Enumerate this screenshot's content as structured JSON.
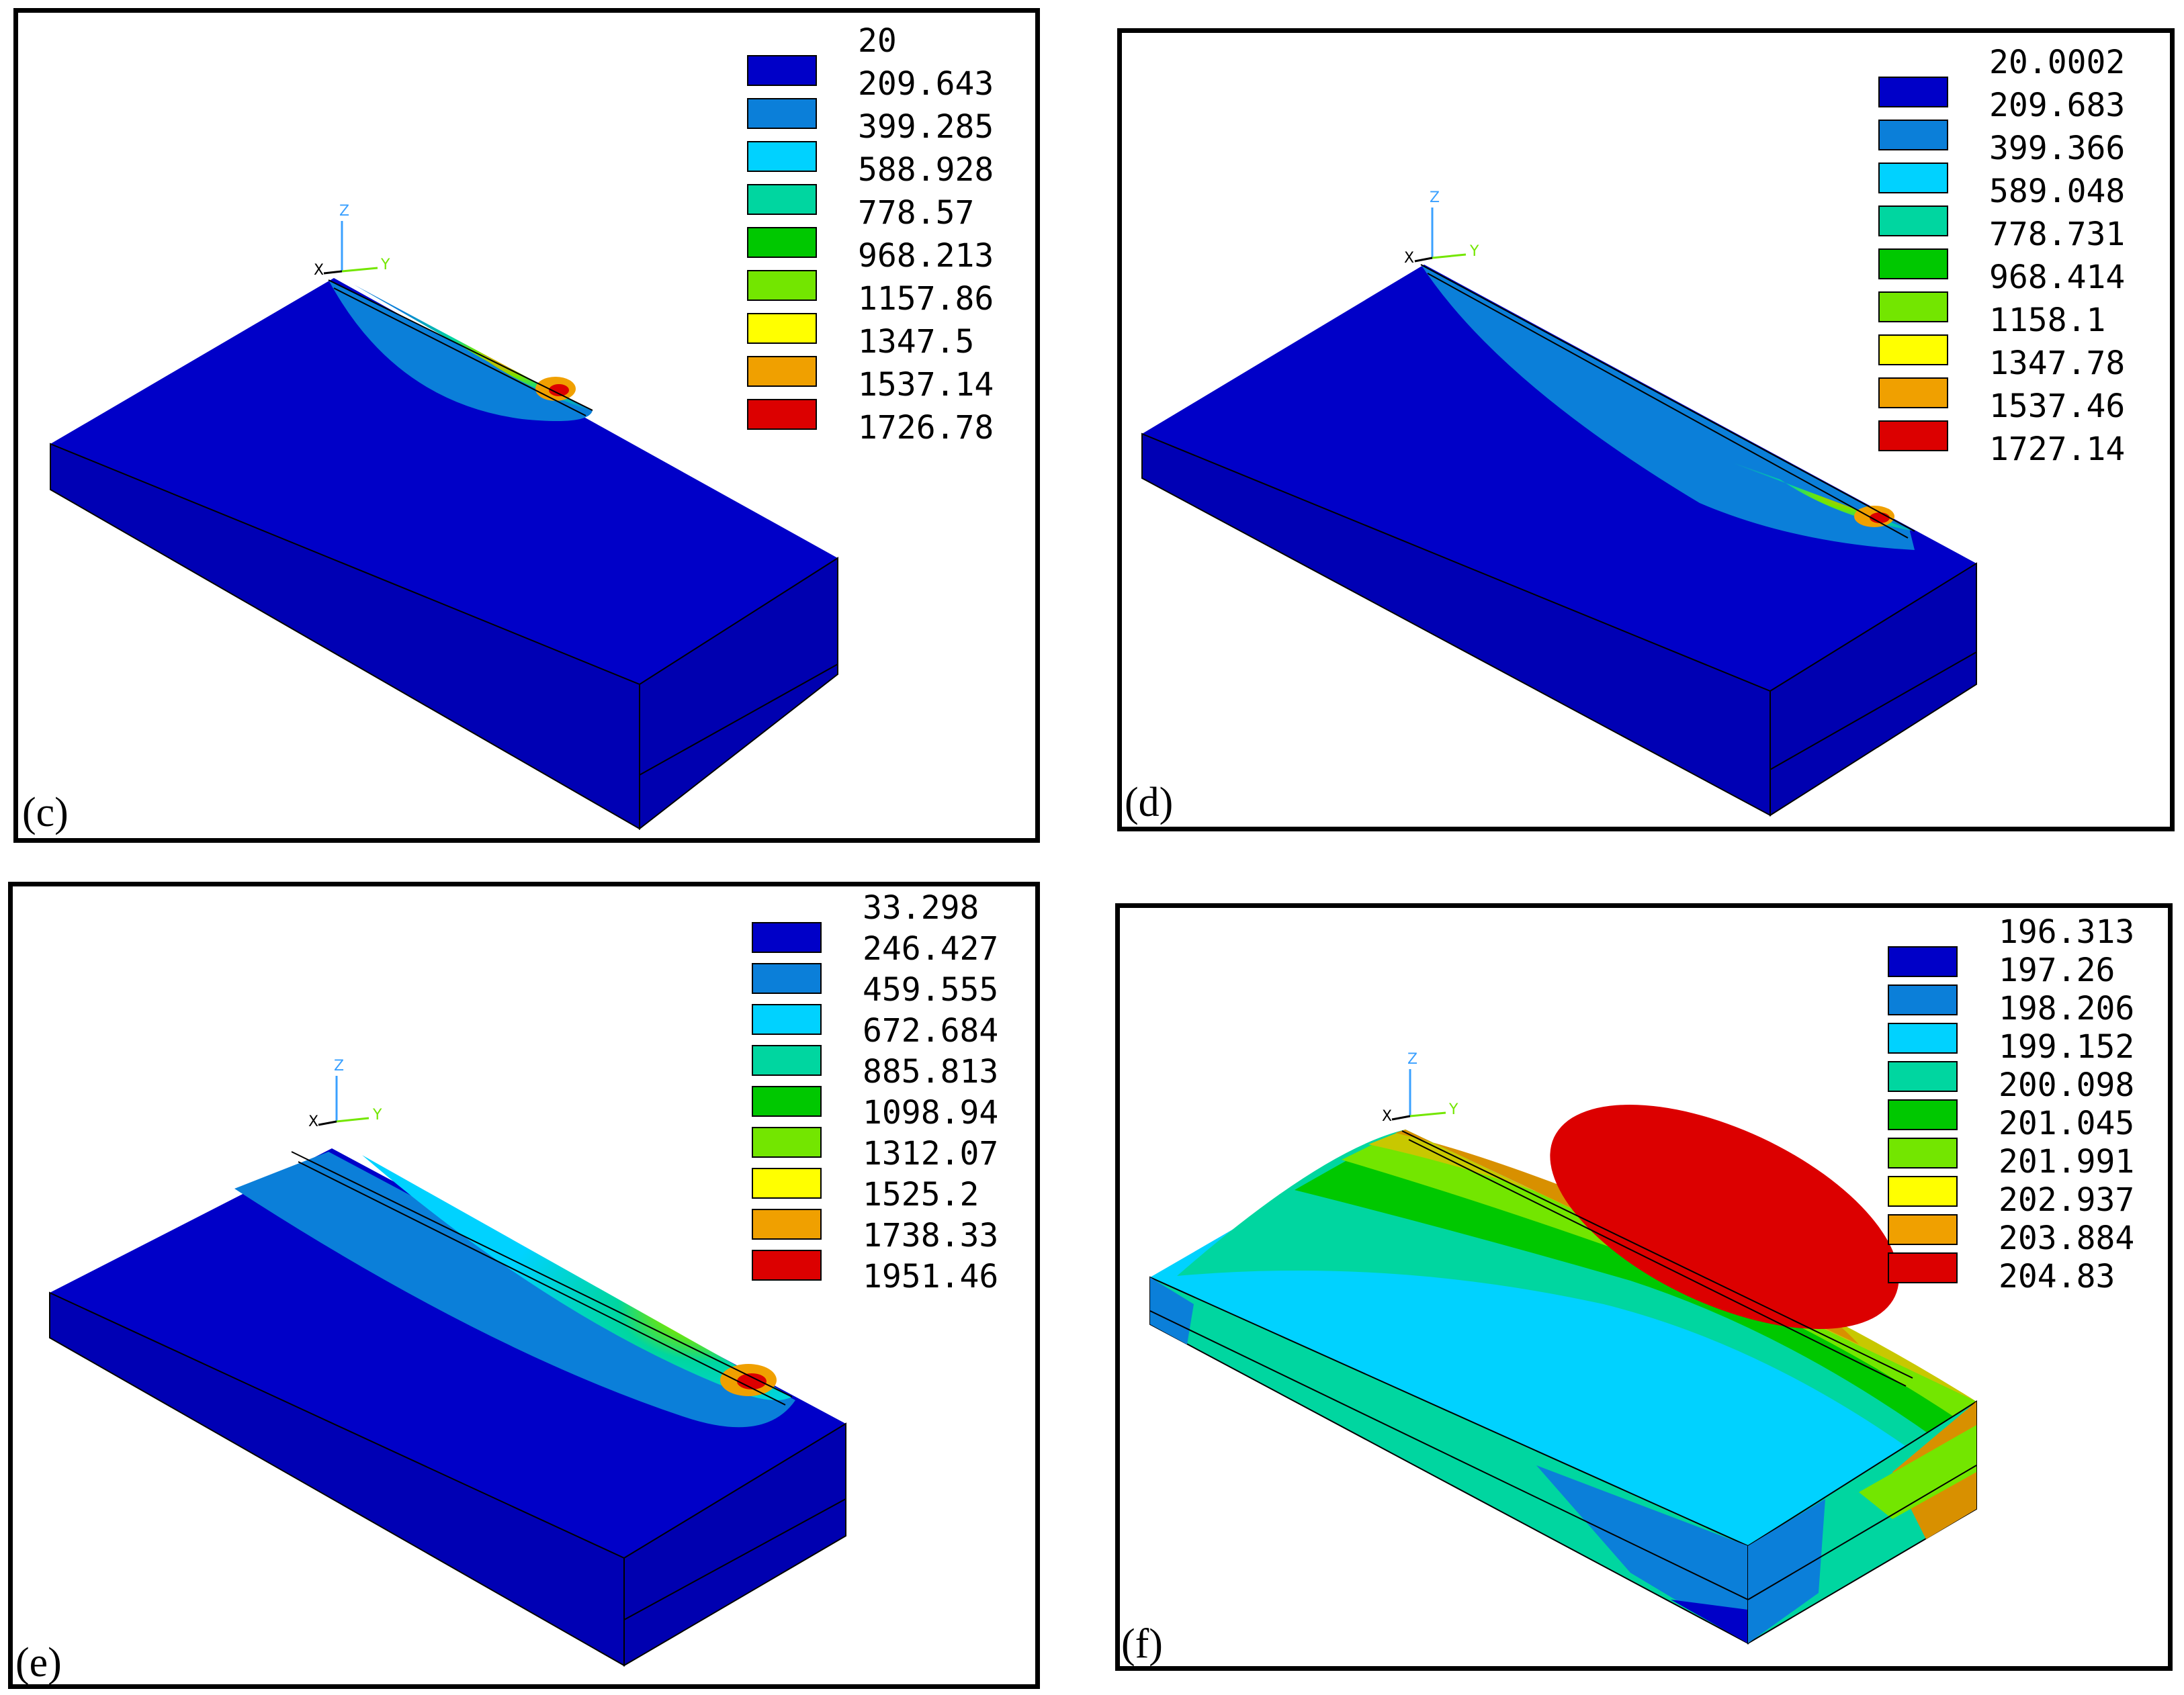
{
  "panels": [
    {
      "label": "(c)",
      "legend": [
        "20",
        "209.643",
        "399.285",
        "588.928",
        "778.57",
        "968.213",
        "1157.86",
        "1347.5",
        "1537.14",
        "1726.78"
      ]
    },
    {
      "label": "(d)",
      "legend": [
        "20.0002",
        "209.683",
        "399.366",
        "589.048",
        "778.731",
        "968.414",
        "1158.1",
        "1347.78",
        "1537.46",
        "1727.14"
      ]
    },
    {
      "label": "(e)",
      "legend": [
        "33.298",
        "246.427",
        "459.555",
        "672.684",
        "885.813",
        "1098.94",
        "1312.07",
        "1525.2",
        "1738.33",
        "1951.46"
      ]
    },
    {
      "label": "(f)",
      "legend": [
        "196.313",
        "197.26",
        "198.206",
        "199.152",
        "200.098",
        "201.045",
        "201.991",
        "202.937",
        "203.884",
        "204.83"
      ]
    }
  ],
  "palette": [
    "#0000c8",
    "#0b7fd9",
    "#00d2ff",
    "#00d6a0",
    "#00c800",
    "#73e600",
    "#ffff00",
    "#f0a000",
    "#dc0000"
  ],
  "axes": {
    "x": "X",
    "y": "Y",
    "z": "Z"
  }
}
